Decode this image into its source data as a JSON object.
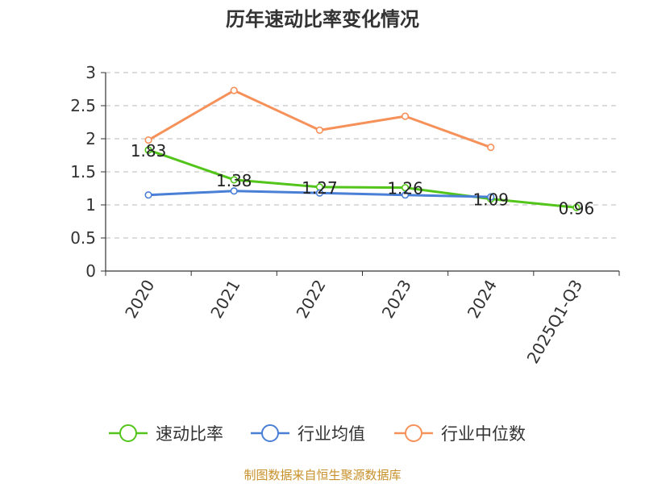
{
  "chart_data": {
    "type": "line",
    "title": "历年速动比率变化情况",
    "categories": [
      "2020",
      "2021",
      "2022",
      "2023",
      "2024",
      "2025Q1-Q3"
    ],
    "ylim": [
      0,
      3
    ],
    "yticks": [
      "0",
      "0.5",
      "1",
      "1.5",
      "2",
      "2.5",
      "3"
    ],
    "grid": true,
    "legend_position": "bottom",
    "series": [
      {
        "name": "速动比率",
        "color": "#52c41a",
        "values": [
          1.83,
          1.38,
          1.27,
          1.26,
          1.09,
          0.96
        ],
        "labels": [
          "1.83",
          "1.38",
          "1.27",
          "1.26",
          "1.09",
          "0.96"
        ]
      },
      {
        "name": "行业均值",
        "color": "#4a7fd6",
        "values": [
          1.15,
          1.21,
          1.18,
          1.15,
          1.12,
          null
        ],
        "labels": []
      },
      {
        "name": "行业中位数",
        "color": "#f6915a",
        "values": [
          1.98,
          2.73,
          2.13,
          2.34,
          1.87,
          null
        ],
        "labels": []
      }
    ]
  },
  "source": "制图数据来自恒生聚源数据库"
}
